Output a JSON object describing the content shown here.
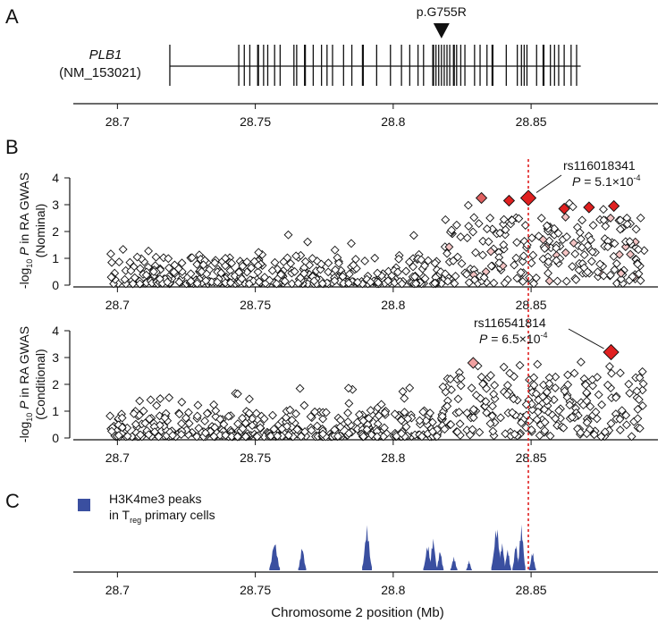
{
  "panels": {
    "a": "A",
    "b": "B",
    "c": "C"
  },
  "gene": {
    "name": "PLB1",
    "transcript": "(NM_153021)",
    "variant": "p.G755R",
    "variant_x": 28.8175,
    "span": [
      28.719,
      28.868
    ],
    "exons": [
      28.744,
      28.746,
      28.748,
      28.751,
      28.753,
      28.7545,
      28.757,
      28.759,
      28.764,
      28.765,
      28.768,
      28.771,
      28.774,
      28.776,
      28.778,
      28.782,
      28.785,
      28.789,
      28.794,
      28.799,
      28.803,
      28.806,
      28.809,
      28.811,
      28.8145,
      28.8155,
      28.8165,
      28.8175,
      28.8185,
      28.8195,
      28.8205,
      28.822,
      28.823,
      28.8245,
      28.826,
      28.8295,
      28.8315,
      28.834,
      28.836,
      28.841,
      28.845,
      28.8465,
      28.8475,
      28.8485,
      28.852,
      28.8545,
      28.857,
      28.8585,
      28.86,
      28.862,
      28.8645,
      28.8665
    ]
  },
  "axis": {
    "x_ticks": [
      "28.7",
      "28.75",
      "28.8",
      "28.85"
    ],
    "y_ticks": [
      "0",
      "1",
      "2",
      "3",
      "4"
    ],
    "x_label": "Chromosome 2 position (Mb)"
  },
  "chart_data": [
    {
      "type": "scatter",
      "title": "Nominal",
      "ylabel_prefix": "-log",
      "ylabel_sub": "10",
      "ylabel_p": "P",
      "ylabel_rest": " in RA GWAS",
      "ylabel_line2": "(Nominal)",
      "xlim": [
        28.684,
        28.896
      ],
      "ylim": [
        0,
        4
      ],
      "lead": {
        "snp": "rs116018341",
        "x": 28.849,
        "y": 3.25,
        "label_p": "P",
        "label_rest": " = 5.1×10",
        "label_exp": "-4"
      },
      "highlight": [
        {
          "x": 28.832,
          "y": 3.25,
          "color": "#e06060"
        },
        {
          "x": 28.842,
          "y": 3.15,
          "color": "#e02020"
        },
        {
          "x": 28.862,
          "y": 2.85,
          "color": "#e02020"
        },
        {
          "x": 28.871,
          "y": 2.9,
          "color": "#e02020"
        },
        {
          "x": 28.88,
          "y": 2.95,
          "color": "#e02020"
        }
      ],
      "seed": 11
    },
    {
      "type": "scatter",
      "title": "Conditional",
      "ylabel_prefix": "-log",
      "ylabel_sub": "10",
      "ylabel_p": "P",
      "ylabel_rest": " in RA GWAS",
      "ylabel_line2": "(Conditional)",
      "xlim": [
        28.684,
        28.896
      ],
      "ylim": [
        0,
        4
      ],
      "lead": {
        "snp": "rs116541814",
        "x": 28.879,
        "y": 3.2,
        "label_p": "P",
        "label_rest": " = 6.5×10",
        "label_exp": "-4"
      },
      "highlight": [
        {
          "x": 28.829,
          "y": 2.8,
          "color": "#f0a0a0"
        }
      ],
      "seed": 29
    },
    {
      "type": "area",
      "title": "H3K4me3 peaks",
      "legend_line1": "H3K4me3 peaks",
      "legend_line2_a": "in T",
      "legend_line2_sub": "reg",
      "legend_line2_b": " primary cells",
      "color": "#3a4fa0",
      "peaks": [
        {
          "x": 28.757,
          "h": 0.55,
          "w": 0.0012
        },
        {
          "x": 28.767,
          "h": 0.45,
          "w": 0.0009
        },
        {
          "x": 28.7905,
          "h": 0.82,
          "w": 0.0011
        },
        {
          "x": 28.8125,
          "h": 0.48,
          "w": 0.001
        },
        {
          "x": 28.8145,
          "h": 0.6,
          "w": 0.0009
        },
        {
          "x": 28.817,
          "h": 0.38,
          "w": 0.0008
        },
        {
          "x": 28.822,
          "h": 0.25,
          "w": 0.0008
        },
        {
          "x": 28.8275,
          "h": 0.18,
          "w": 0.0005
        },
        {
          "x": 28.8375,
          "h": 0.82,
          "w": 0.0012
        },
        {
          "x": 28.8395,
          "h": 0.52,
          "w": 0.0008
        },
        {
          "x": 28.8415,
          "h": 0.4,
          "w": 0.0008
        },
        {
          "x": 28.8445,
          "h": 0.5,
          "w": 0.0008
        },
        {
          "x": 28.8465,
          "h": 0.83,
          "w": 0.0009
        },
        {
          "x": 28.8505,
          "h": 0.35,
          "w": 0.0008
        }
      ]
    }
  ],
  "marker_line_x": 28.849
}
